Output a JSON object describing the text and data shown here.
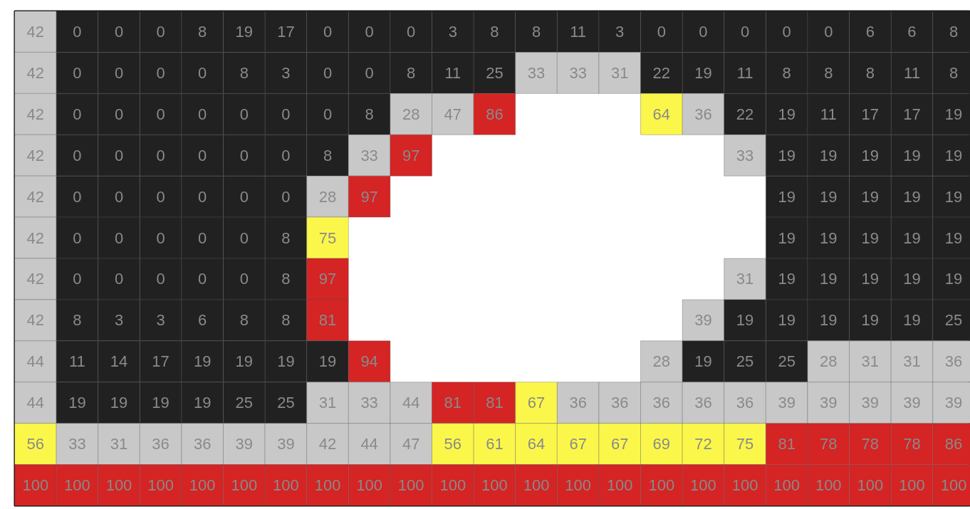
{
  "chart_data": {
    "type": "heatmap",
    "categories": [
      null,
      null,
      null,
      null,
      null,
      null,
      null,
      null,
      null,
      null,
      null,
      null,
      null,
      null,
      null,
      null,
      null,
      null,
      null,
      null,
      null,
      null,
      null
    ],
    "y_categories": [
      null,
      null,
      null,
      null,
      null,
      null,
      null,
      null,
      null,
      null,
      null,
      null
    ],
    "tick_labels": false,
    "grid": false,
    "data_labels": true,
    "cells": [
      [
        42,
        0,
        0,
        0,
        8,
        19,
        17,
        0,
        0,
        0,
        3,
        8,
        8,
        11,
        3,
        0,
        0,
        0,
        0,
        0,
        6,
        6,
        8
      ],
      [
        42,
        0,
        0,
        0,
        0,
        8,
        3,
        0,
        0,
        8,
        11,
        25,
        33,
        33,
        31,
        22,
        19,
        11,
        8,
        8,
        8,
        11,
        8
      ],
      [
        42,
        0,
        0,
        0,
        0,
        0,
        0,
        0,
        8,
        28,
        47,
        86,
        null,
        null,
        null,
        64,
        36,
        22,
        19,
        11,
        17,
        17,
        19
      ],
      [
        42,
        0,
        0,
        0,
        0,
        0,
        0,
        8,
        33,
        97,
        null,
        null,
        null,
        null,
        null,
        null,
        null,
        33,
        19,
        19,
        19,
        19,
        19
      ],
      [
        42,
        0,
        0,
        0,
        0,
        0,
        0,
        28,
        97,
        null,
        null,
        null,
        null,
        null,
        null,
        null,
        null,
        null,
        19,
        19,
        19,
        19,
        19
      ],
      [
        42,
        0,
        0,
        0,
        0,
        0,
        8,
        75,
        null,
        null,
        null,
        null,
        null,
        null,
        null,
        null,
        null,
        null,
        19,
        19,
        19,
        19,
        19
      ],
      [
        42,
        0,
        0,
        0,
        0,
        0,
        8,
        97,
        null,
        null,
        null,
        null,
        null,
        null,
        null,
        null,
        null,
        31,
        19,
        19,
        19,
        19,
        19
      ],
      [
        42,
        8,
        3,
        3,
        6,
        8,
        8,
        81,
        null,
        null,
        null,
        null,
        null,
        null,
        null,
        null,
        39,
        19,
        19,
        19,
        19,
        19,
        25
      ],
      [
        44,
        11,
        14,
        17,
        19,
        19,
        19,
        19,
        94,
        null,
        null,
        null,
        null,
        null,
        null,
        28,
        19,
        25,
        25,
        28,
        31,
        31,
        36
      ],
      [
        44,
        19,
        19,
        19,
        19,
        25,
        25,
        31,
        33,
        44,
        81,
        81,
        67,
        36,
        36,
        36,
        36,
        36,
        39,
        39,
        39,
        39,
        39
      ],
      [
        56,
        33,
        31,
        36,
        36,
        39,
        39,
        42,
        44,
        47,
        56,
        61,
        64,
        67,
        67,
        69,
        72,
        75,
        81,
        78,
        78,
        78,
        86
      ],
      [
        100,
        100,
        100,
        100,
        100,
        100,
        100,
        100,
        100,
        100,
        100,
        100,
        100,
        100,
        100,
        100,
        100,
        100,
        100,
        100,
        100,
        100,
        100
      ]
    ],
    "colors": [
      [
        "#c8c8c8",
        "#212121",
        "#212121",
        "#212121",
        "#212121",
        "#212121",
        "#212121",
        "#212121",
        "#212121",
        "#212121",
        "#212121",
        "#212121",
        "#212121",
        "#212121",
        "#212121",
        "#212121",
        "#212121",
        "#212121",
        "#212121",
        "#212121",
        "#212121",
        "#212121",
        "#212121"
      ],
      [
        "#c8c8c8",
        "#212121",
        "#212121",
        "#212121",
        "#212121",
        "#212121",
        "#212121",
        "#212121",
        "#212121",
        "#212121",
        "#212121",
        "#212121",
        "#c8c8c8",
        "#c8c8c8",
        "#c8c8c8",
        "#212121",
        "#212121",
        "#212121",
        "#212121",
        "#212121",
        "#212121",
        "#212121",
        "#212121"
      ],
      [
        "#c8c8c8",
        "#212121",
        "#212121",
        "#212121",
        "#212121",
        "#212121",
        "#212121",
        "#212121",
        "#212121",
        "#c8c8c8",
        "#c8c8c8",
        "#d42424",
        null,
        null,
        null,
        "#fbf74a",
        "#c8c8c8",
        "#212121",
        "#212121",
        "#212121",
        "#212121",
        "#212121",
        "#212121"
      ],
      [
        "#c8c8c8",
        "#212121",
        "#212121",
        "#212121",
        "#212121",
        "#212121",
        "#212121",
        "#212121",
        "#c8c8c8",
        "#d42424",
        null,
        null,
        null,
        null,
        null,
        null,
        null,
        "#c8c8c8",
        "#212121",
        "#212121",
        "#212121",
        "#212121",
        "#212121"
      ],
      [
        "#c8c8c8",
        "#212121",
        "#212121",
        "#212121",
        "#212121",
        "#212121",
        "#212121",
        "#c8c8c8",
        "#d42424",
        null,
        null,
        null,
        null,
        null,
        null,
        null,
        null,
        null,
        "#212121",
        "#212121",
        "#212121",
        "#212121",
        "#212121"
      ],
      [
        "#c8c8c8",
        "#212121",
        "#212121",
        "#212121",
        "#212121",
        "#212121",
        "#212121",
        "#fbf74a",
        null,
        null,
        null,
        null,
        null,
        null,
        null,
        null,
        null,
        null,
        "#212121",
        "#212121",
        "#212121",
        "#212121",
        "#212121"
      ],
      [
        "#c8c8c8",
        "#212121",
        "#212121",
        "#212121",
        "#212121",
        "#212121",
        "#212121",
        "#d42424",
        null,
        null,
        null,
        null,
        null,
        null,
        null,
        null,
        null,
        "#c8c8c8",
        "#212121",
        "#212121",
        "#212121",
        "#212121",
        "#212121"
      ],
      [
        "#c8c8c8",
        "#212121",
        "#212121",
        "#212121",
        "#212121",
        "#212121",
        "#212121",
        "#d42424",
        null,
        null,
        null,
        null,
        null,
        null,
        null,
        null,
        "#c8c8c8",
        "#212121",
        "#212121",
        "#212121",
        "#212121",
        "#212121",
        "#212121"
      ],
      [
        "#c8c8c8",
        "#212121",
        "#212121",
        "#212121",
        "#212121",
        "#212121",
        "#212121",
        "#212121",
        "#d42424",
        null,
        null,
        null,
        null,
        null,
        null,
        "#c8c8c8",
        "#212121",
        "#212121",
        "#212121",
        "#c8c8c8",
        "#c8c8c8",
        "#c8c8c8",
        "#c8c8c8"
      ],
      [
        "#c8c8c8",
        "#212121",
        "#212121",
        "#212121",
        "#212121",
        "#212121",
        "#212121",
        "#c8c8c8",
        "#c8c8c8",
        "#c8c8c8",
        "#d42424",
        "#d42424",
        "#fbf74a",
        "#c8c8c8",
        "#c8c8c8",
        "#c8c8c8",
        "#c8c8c8",
        "#c8c8c8",
        "#c8c8c8",
        "#c8c8c8",
        "#c8c8c8",
        "#c8c8c8",
        "#c8c8c8"
      ],
      [
        "#fbf74a",
        "#c8c8c8",
        "#c8c8c8",
        "#c8c8c8",
        "#c8c8c8",
        "#c8c8c8",
        "#c8c8c8",
        "#c8c8c8",
        "#c8c8c8",
        "#c8c8c8",
        "#fbf74a",
        "#fbf74a",
        "#fbf74a",
        "#fbf74a",
        "#fbf74a",
        "#fbf74a",
        "#fbf74a",
        "#fbf74a",
        "#d42424",
        "#d42424",
        "#d42424",
        "#d42424",
        "#d42424"
      ],
      [
        "#d42424",
        "#d42424",
        "#d42424",
        "#d42424",
        "#d42424",
        "#d42424",
        "#d42424",
        "#d42424",
        "#d42424",
        "#d42424",
        "#d42424",
        "#d42424",
        "#d42424",
        "#d42424",
        "#d42424",
        "#d42424",
        "#d42424",
        "#d42424",
        "#d42424",
        "#d42424",
        "#d42424",
        "#d42424",
        "#d42424"
      ]
    ]
  }
}
